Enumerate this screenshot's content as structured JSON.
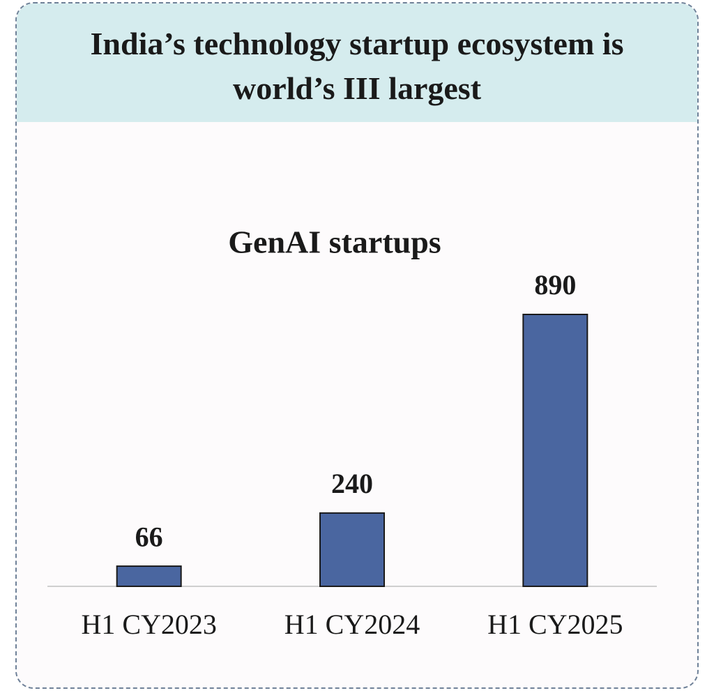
{
  "header": {
    "title": "India’s technology startup ecosystem is world’s III largest"
  },
  "chart_data": {
    "type": "bar",
    "title": "GenAI startups",
    "categories": [
      "H1 CY2023",
      "H1 CY2024",
      "H1 CY2025"
    ],
    "values": [
      66,
      240,
      890
    ],
    "color": "#4a66a0"
  }
}
